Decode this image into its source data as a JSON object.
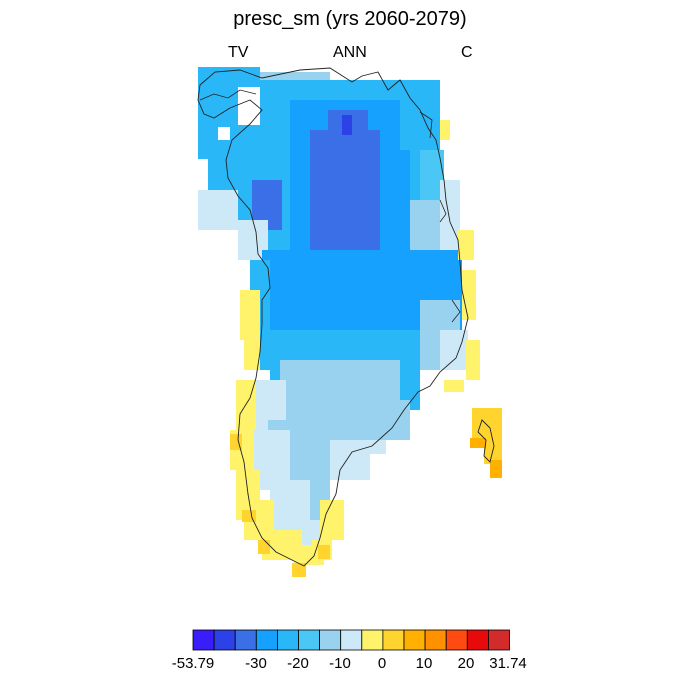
{
  "title": "presc_sm (yrs 2060-2079)",
  "left_label": "TV",
  "center_label": "ANN",
  "right_label": "C",
  "colorbar": {
    "colors": [
      "#3a1dfb",
      "#2c42e8",
      "#3b6fe8",
      "#17a1ff",
      "#29b7f8",
      "#4bc7f5",
      "#99d2ef",
      "#cde9f7",
      "#fff36b",
      "#ffd42e",
      "#ffb000",
      "#ff9100",
      "#ff4a12",
      "#e80a0a",
      "#d22b2b"
    ],
    "tick_labels": [
      "-53.79",
      "-30",
      "-20",
      "-10",
      "0",
      "10",
      "20",
      "31.74"
    ]
  },
  "chart_data": {
    "type": "heatmap",
    "title": "presc_sm (yrs 2060-2079)",
    "region": "Greenland",
    "variable": "presc_sm",
    "period": "yrs 2060-2079",
    "season": "ANN",
    "value_range": [
      -53.79,
      31.74
    ],
    "colorbar_ticks": [
      -53.79,
      -30,
      -20,
      -10,
      0,
      10,
      20,
      31.74
    ]
  }
}
